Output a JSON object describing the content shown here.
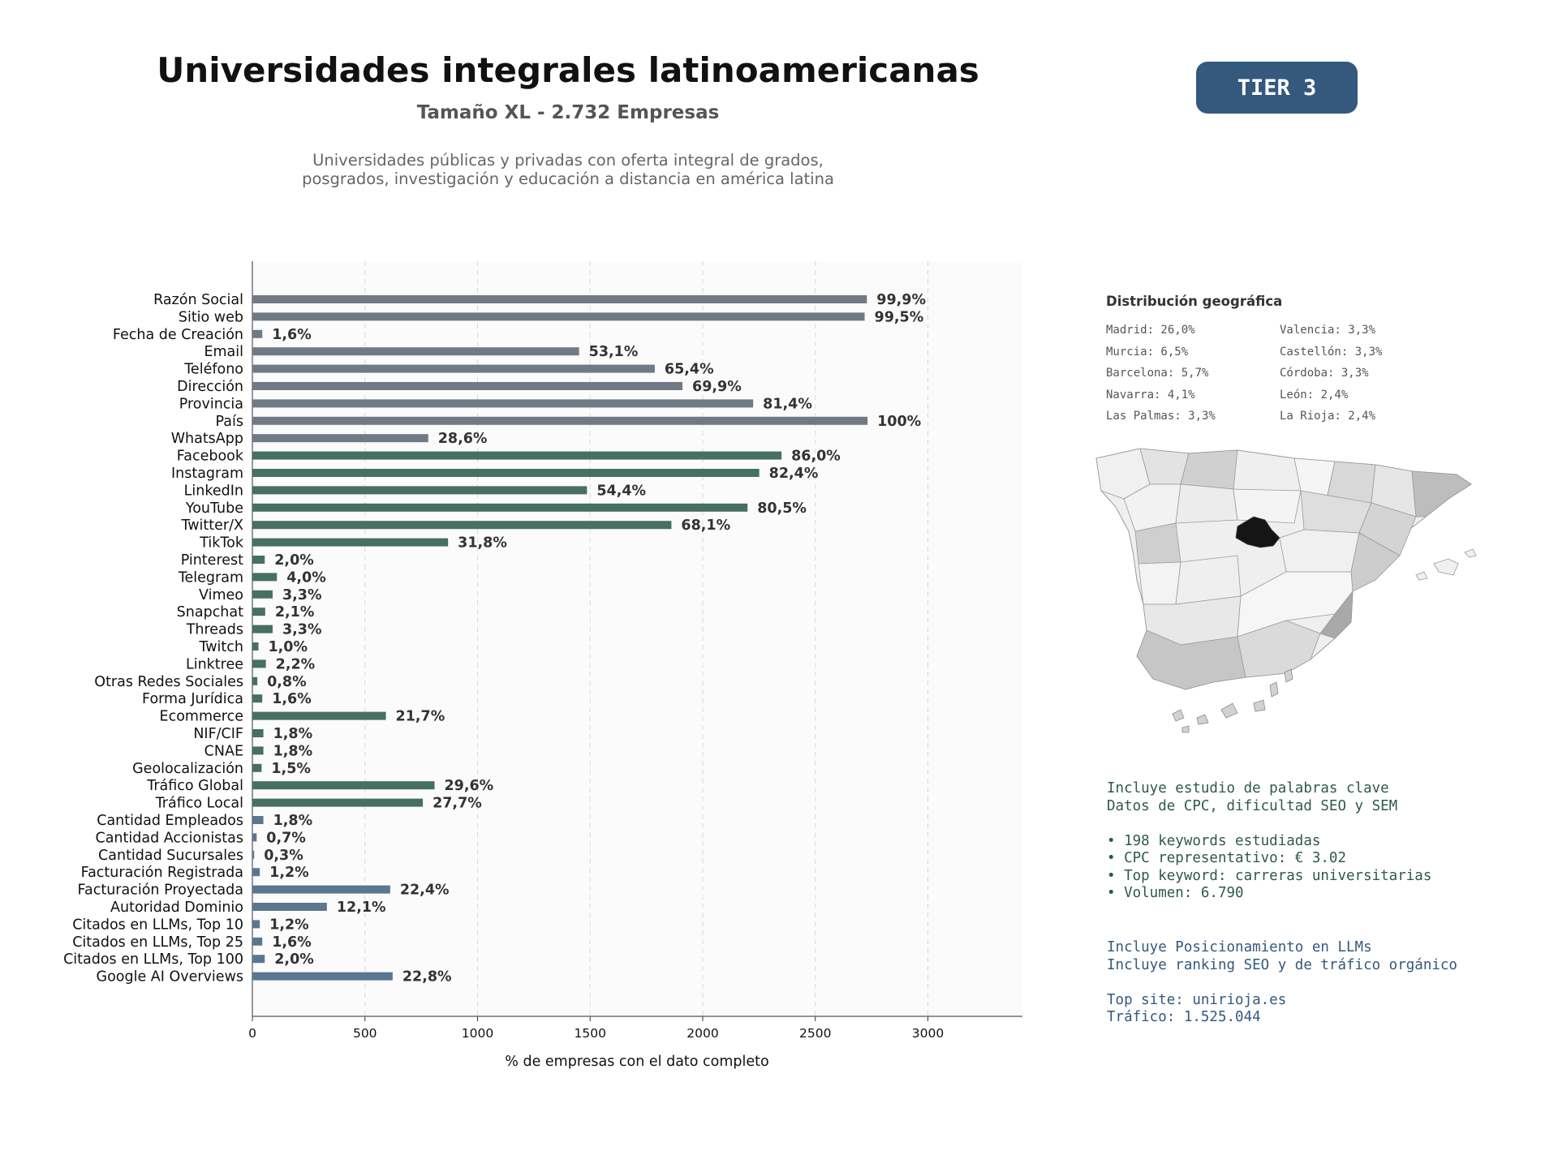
{
  "header": {
    "title": "Universidades integrales latinoamericanas",
    "subtitle": "Tamaño XL - 2.732 Empresas",
    "description_line1": "Universidades públicas y privadas con oferta integral de grados,",
    "description_line2": "posgrados, investigación y educación a distancia en américa latina",
    "tier": "TIER 3"
  },
  "chart_data": {
    "type": "bar",
    "orientation": "horizontal",
    "title": "",
    "xlabel": "% de empresas con el dato completo",
    "ylabel": "",
    "xlim": [
      0,
      3420
    ],
    "xticks": [
      0,
      500,
      1000,
      1500,
      2000,
      2500,
      3000
    ],
    "grid": true,
    "categories": [
      "Razón Social",
      "Sitio web",
      "Fecha de Creación",
      "Email",
      "Teléfono",
      "Dirección",
      "Provincia",
      "País",
      "WhatsApp",
      "Facebook",
      "Instagram",
      "LinkedIn",
      "YouTube",
      "Twitter/X",
      "TikTok",
      "Pinterest",
      "Telegram",
      "Vimeo",
      "Snapchat",
      "Threads",
      "Twitch",
      "Linktree",
      "Otras Redes Sociales",
      "Forma Jurídica",
      "Ecommerce",
      "NIF/CIF",
      "CNAE",
      "Geolocalización",
      "Tráfico Global",
      "Tráfico Local",
      "Cantidad Empleados",
      "Cantidad Accionistas",
      "Cantidad Sucursales",
      "Facturación Registrada",
      "Facturación Proyectada",
      "Autoridad Dominio",
      "Citados en LLMs, Top 10",
      "Citados en LLMs, Top 25",
      "Citados en LLMs, Top 100",
      "Google AI Overviews"
    ],
    "values": [
      2729,
      2719,
      44,
      1451,
      1787,
      1910,
      2224,
      2732,
      781,
      2350,
      2251,
      1486,
      2199,
      1861,
      869,
      55,
      109,
      90,
      57,
      90,
      27,
      60,
      22,
      44,
      593,
      49,
      49,
      41,
      809,
      757,
      49,
      19,
      8,
      33,
      612,
      331,
      33,
      44,
      55,
      623
    ],
    "labels": [
      "99,9%",
      "99,5%",
      "1,6%",
      "53,1%",
      "65,4%",
      "69,9%",
      "81,4%",
      "100%",
      "28,6%",
      "86,0%",
      "82,4%",
      "54,4%",
      "80,5%",
      "68,1%",
      "31,8%",
      "2,0%",
      "4,0%",
      "3,3%",
      "2,1%",
      "3,3%",
      "1,0%",
      "2,2%",
      "0,8%",
      "1,6%",
      "21,7%",
      "1,8%",
      "1,8%",
      "1,5%",
      "29,6%",
      "27,7%",
      "1,8%",
      "0,7%",
      "0,3%",
      "1,2%",
      "22,4%",
      "12,1%",
      "1,2%",
      "1,6%",
      "2,0%",
      "22,8%"
    ],
    "groups": [
      "basic",
      "basic",
      "basic",
      "basic",
      "basic",
      "basic",
      "basic",
      "basic",
      "basic",
      "social",
      "social",
      "social",
      "social",
      "social",
      "social",
      "social",
      "social",
      "social",
      "social",
      "social",
      "social",
      "social",
      "social",
      "social",
      "social",
      "social",
      "social",
      "social",
      "social",
      "social",
      "financial",
      "financial",
      "financial",
      "financial",
      "financial",
      "financial",
      "financial",
      "financial",
      "financial",
      "financial"
    ],
    "colors": {
      "basic": "#6f7a84",
      "social": "#46705f",
      "financial": "#5b7790"
    }
  },
  "geo": {
    "title": "Distribución geográfica",
    "items": [
      "Madrid: 26,0%",
      "Valencia: 3,3%",
      "Murcia: 6,5%",
      "Castellón: 3,3%",
      "Barcelona: 5,7%",
      "Córdoba: 3,3%",
      "Navarra: 4,1%",
      "León: 2,4%",
      "Las Palmas: 3,3%",
      "La Rioja: 2,4%"
    ]
  },
  "keywords": {
    "line1": "Incluye estudio de palabras clave",
    "line2": "Datos de CPC, dificultad SEO y SEM",
    "bullet1": "• 198 keywords estudiadas",
    "bullet2": "• CPC representativo: € 3.02",
    "bullet3": "• Top keyword: carreras universitarias",
    "bullet4": "• Volumen: 6.790"
  },
  "llm": {
    "line1": "Incluye Posicionamiento en LLMs",
    "line2": "Incluye ranking SEO y de tráfico orgánico",
    "top_site": "Top site: unirioja.es",
    "traffic": "Tráfico: 1.525.044"
  }
}
